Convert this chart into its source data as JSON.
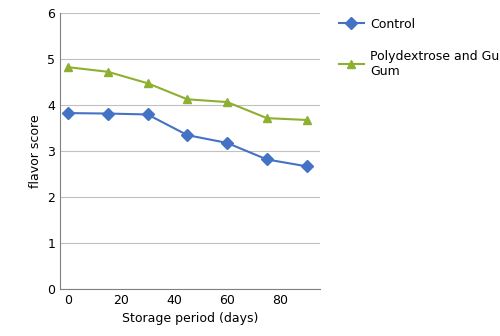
{
  "x_days": [
    0,
    15,
    30,
    45,
    60,
    75,
    90
  ],
  "control_y": [
    3.83,
    3.82,
    3.8,
    3.35,
    3.18,
    2.82,
    2.67
  ],
  "polydextrose_y": [
    4.83,
    4.73,
    4.48,
    4.13,
    4.07,
    3.72,
    3.68
  ],
  "control_color": "#4472C4",
  "polydextrose_color": "#8DB030",
  "xlabel": "Storage period (days)",
  "ylabel": "flavor score",
  "ylim": [
    0,
    6
  ],
  "yticks": [
    0,
    1,
    2,
    3,
    4,
    5,
    6
  ],
  "xlim": [
    -3,
    95
  ],
  "xticks": [
    0,
    20,
    40,
    60,
    80
  ],
  "control_label": "Control",
  "polydextrose_label": "Polydextrose and Guar\nGum",
  "marker_control": "D",
  "marker_poly": "^",
  "linewidth": 1.5,
  "markersize": 6,
  "grid_color": "#C0C0C0",
  "grid_linewidth": 0.8,
  "tick_labelsize": 9,
  "axis_labelsize": 9,
  "legend_fontsize": 9
}
